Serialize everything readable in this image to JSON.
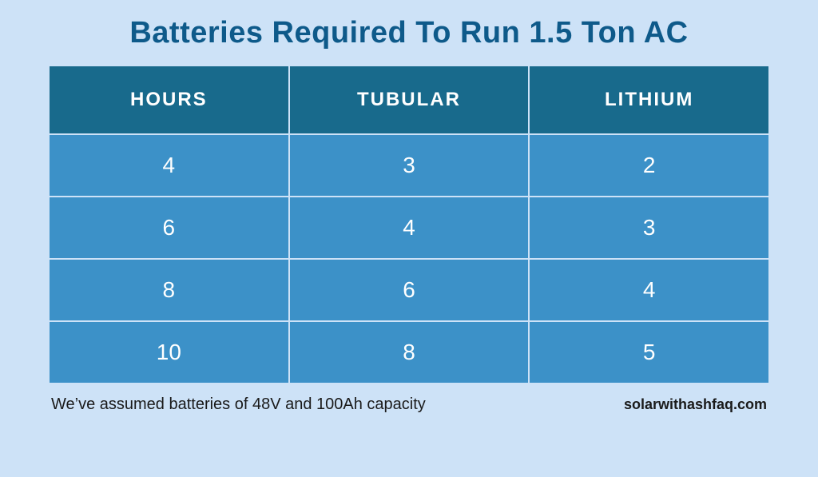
{
  "title": "Batteries Required To Run 1.5 Ton AC",
  "table": {
    "type": "table",
    "columns": [
      "HOURS",
      "TUBULAR",
      "LITHIUM"
    ],
    "rows": [
      [
        "4",
        "3",
        "2"
      ],
      [
        "6",
        "4",
        "3"
      ],
      [
        "8",
        "6",
        "4"
      ],
      [
        "10",
        "8",
        "5"
      ]
    ],
    "header_bg": "#186a8c",
    "header_text_color": "#ffffff",
    "header_fontsize": 24,
    "header_fontweight": 700,
    "cell_bg": "#3c91c8",
    "cell_text_color": "#ffffff",
    "cell_fontsize": 28,
    "cell_fontweight": 400,
    "border_color": "#cde2f7",
    "border_width": 2,
    "column_align": [
      "center",
      "center",
      "center"
    ]
  },
  "footnote": "We’ve assumed batteries of 48V and 100Ah capacity",
  "attribution": "solarwithashfaq.com",
  "styling": {
    "page_bg": "#cde2f7",
    "title_color": "#0e5a8a",
    "title_fontsize": 38,
    "title_fontweight": 800,
    "footnote_color": "#1a1a1a",
    "footnote_fontsize": 20,
    "attribution_fontsize": 18,
    "attribution_fontweight": 700
  }
}
